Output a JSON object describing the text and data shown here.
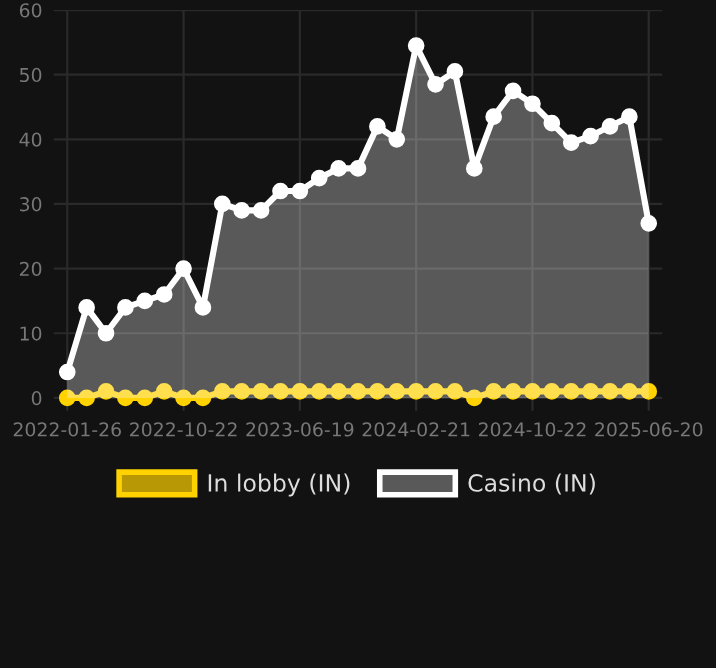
{
  "chart_data": {
    "type": "line",
    "categories": [
      "2022-01-26",
      null,
      null,
      null,
      null,
      null,
      "2022-10-22",
      null,
      null,
      null,
      null,
      null,
      "2023-06-19",
      null,
      null,
      null,
      null,
      null,
      "2024-02-21",
      null,
      null,
      null,
      null,
      null,
      "2024-10-22",
      null,
      null,
      null,
      null,
      null,
      "2025-06-20"
    ],
    "series": [
      {
        "name": "In lobby (IN)",
        "color": "#ffd200",
        "values": [
          0,
          0,
          1,
          0,
          0,
          1,
          0,
          0,
          1,
          1,
          1,
          1,
          1,
          1,
          1,
          1,
          1,
          1,
          1,
          1,
          1,
          0,
          1,
          1,
          1,
          1,
          1,
          1,
          1,
          1,
          1
        ]
      },
      {
        "name": "Casino (IN)",
        "type": "area",
        "color": "#ffffff",
        "values": [
          4,
          14,
          10,
          14,
          15,
          16,
          20,
          14,
          30,
          29,
          29,
          32,
          32,
          34,
          35.5,
          35.5,
          42,
          40,
          54.5,
          48.5,
          50.5,
          35.5,
          43.5,
          47.5,
          45.5,
          42.5,
          39.5,
          40.5,
          42,
          43.5,
          27
        ]
      }
    ],
    "ylim": [
      -2,
      60
    ],
    "yticks": [
      0,
      10,
      20,
      30,
      40,
      50,
      60
    ],
    "grid": true,
    "legend": "bottom",
    "marker": "circle",
    "line_style": "solid"
  }
}
